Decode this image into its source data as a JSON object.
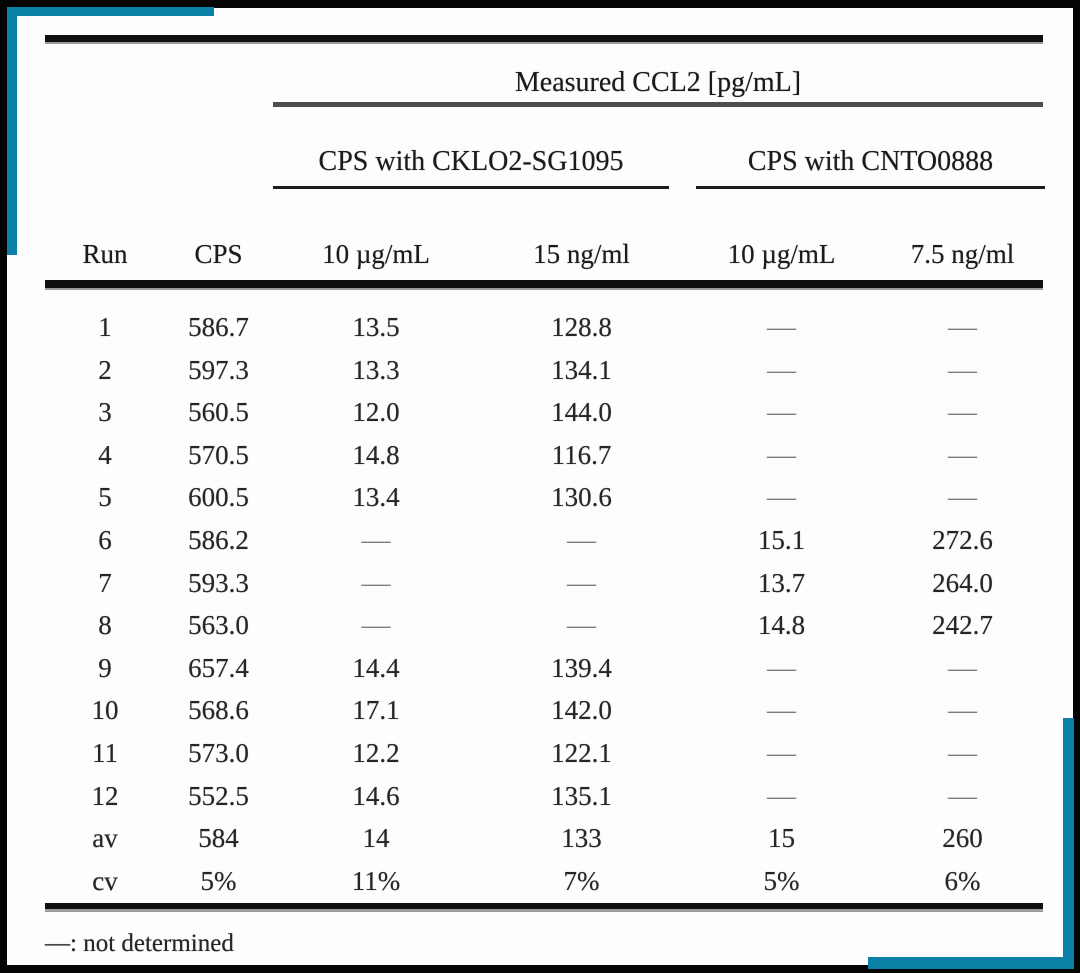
{
  "colors": {
    "accent": "#0b81a8",
    "paper": "#fdfdfd",
    "frame": "#040404"
  },
  "table": {
    "spanner_title": "Measured CCL2 [pg/mL]",
    "group_headers": [
      "CPS with CKLO2-SG1095",
      "CPS with CNTO0888"
    ],
    "columns": [
      "Run",
      "CPS",
      "10 µg/mL",
      "15 ng/ml",
      "10 µg/mL",
      "7.5 ng/ml"
    ],
    "rows": [
      [
        "1",
        "586.7",
        "13.5",
        "128.8",
        "—",
        "—"
      ],
      [
        "2",
        "597.3",
        "13.3",
        "134.1",
        "—",
        "—"
      ],
      [
        "3",
        "560.5",
        "12.0",
        "144.0",
        "—",
        "—"
      ],
      [
        "4",
        "570.5",
        "14.8",
        "116.7",
        "—",
        "—"
      ],
      [
        "5",
        "600.5",
        "13.4",
        "130.6",
        "—",
        "—"
      ],
      [
        "6",
        "586.2",
        "—",
        "—",
        "15.1",
        "272.6"
      ],
      [
        "7",
        "593.3",
        "—",
        "—",
        "13.7",
        "264.0"
      ],
      [
        "8",
        "563.0",
        "—",
        "—",
        "14.8",
        "242.7"
      ],
      [
        "9",
        "657.4",
        "14.4",
        "139.4",
        "—",
        "—"
      ],
      [
        "10",
        "568.6",
        "17.1",
        "142.0",
        "—",
        "—"
      ],
      [
        "11",
        "573.0",
        "12.2",
        "122.1",
        "—",
        "—"
      ],
      [
        "12",
        "552.5",
        "14.6",
        "135.1",
        "—",
        "—"
      ],
      [
        "av",
        "584",
        "14",
        "133",
        "15",
        "260"
      ],
      [
        "cv",
        "5%",
        "11%",
        "7%",
        "5%",
        "6%"
      ]
    ],
    "not_determined_symbol": "—",
    "footnote": "—: not determined"
  }
}
